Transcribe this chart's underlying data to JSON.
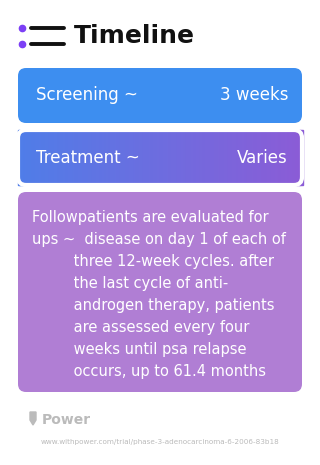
{
  "title": "Timeline",
  "title_fontsize": 18,
  "title_color": "#111111",
  "icon_color": "#7c3ff5",
  "bg_color": "#ffffff",
  "rows": [
    {
      "label_left": "Screening ~",
      "label_right": "3 weeks",
      "box_color": "#3d8ef0",
      "text_color": "#ffffff",
      "fontsize": 12,
      "type": "simple"
    },
    {
      "label_left": "Treatment ~",
      "label_right": "Varies",
      "box_color_left": "#4f7de8",
      "box_color_right": "#8b5cd6",
      "text_color": "#ffffff",
      "fontsize": 12,
      "type": "gradient"
    },
    {
      "lines": [
        "Followpatients are evaluated for",
        "ups ~  disease on day 1 of each of",
        "         three 12-week cycles. after",
        "         the last cycle of anti-",
        "         androgen therapy, patients",
        "         are assessed every four",
        "         weeks until psa relapse",
        "         occurs, up to 61.4 months"
      ],
      "box_color": "#b07ed4",
      "text_color": "#ffffff",
      "fontsize": 10.5,
      "type": "multiline"
    }
  ],
  "footer_logo_text": "Power",
  "footer_url": "www.withpower.com/trial/phase-3-adenocarcinoma-6-2006-83b18",
  "footer_color": "#bbbbbb"
}
